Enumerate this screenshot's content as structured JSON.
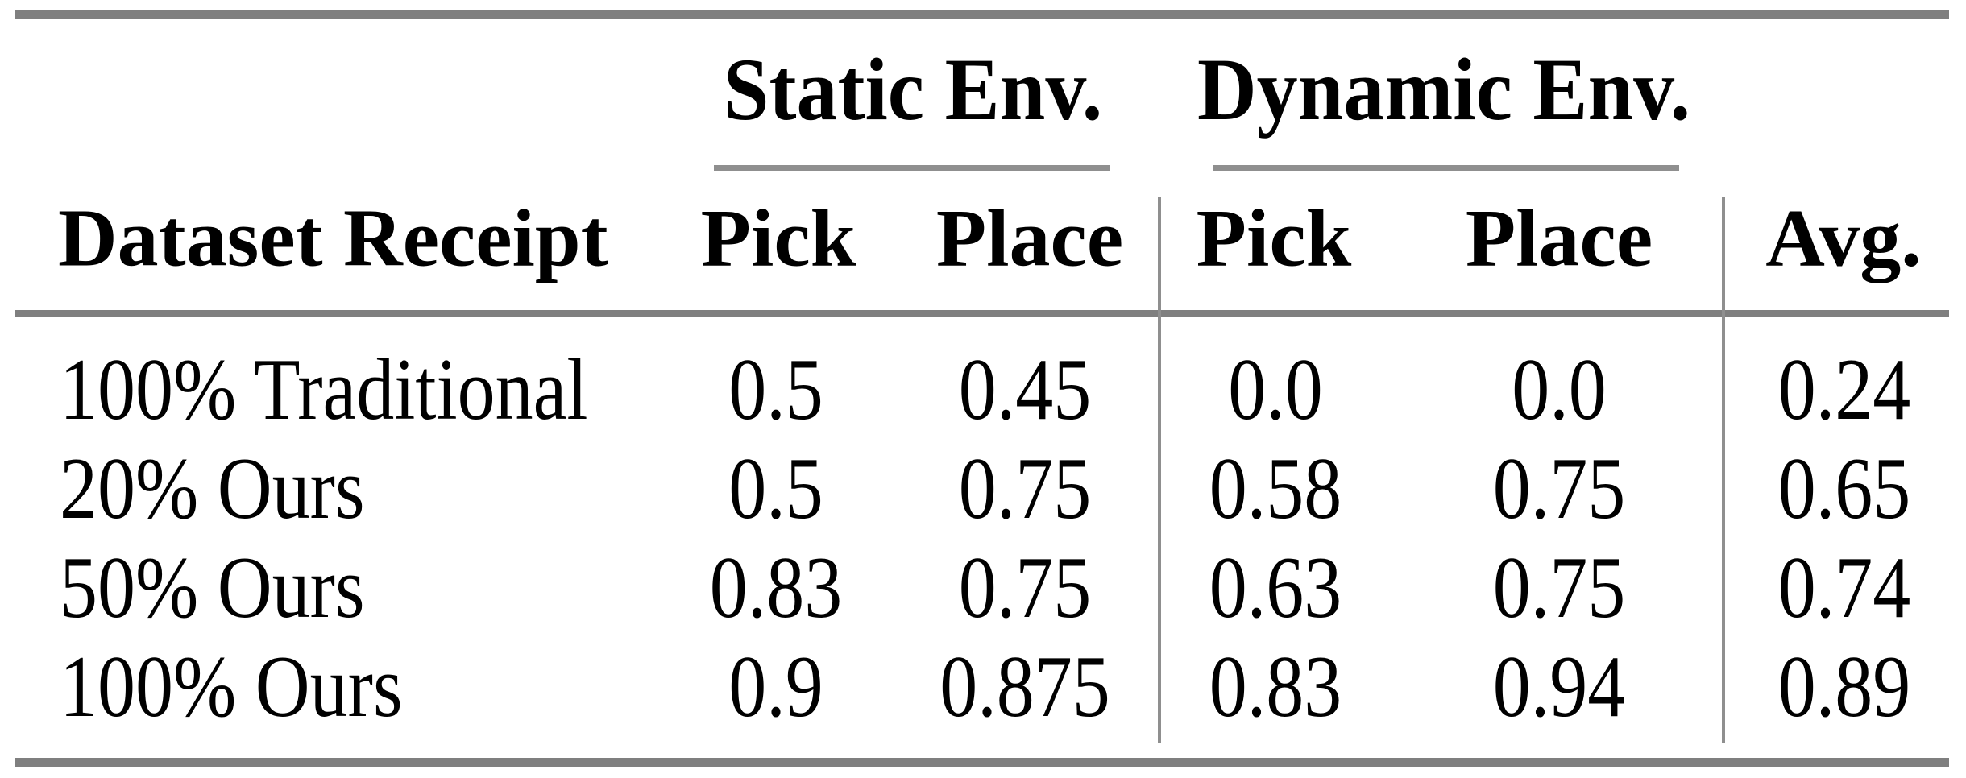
{
  "colors": {
    "background": "#ffffff",
    "rule_gray": "#7f7f7f",
    "line_gray": "#8f8f8f",
    "text": "#000000"
  },
  "table": {
    "group_headers": {
      "static": "Static Env.",
      "dynamic": "Dynamic Env."
    },
    "column_headers": {
      "dataset": "Dataset Receipt",
      "static_pick": "Pick",
      "static_place": "Place",
      "dynamic_pick": "Pick",
      "dynamic_place": "Place",
      "avg": "Avg."
    },
    "rows": [
      {
        "label": "100% Traditional",
        "static_pick": "0.5",
        "static_place": "0.45",
        "dynamic_pick": "0.0",
        "dynamic_place": "0.0",
        "avg": "0.24"
      },
      {
        "label": "20% Ours",
        "static_pick": "0.5",
        "static_place": "0.75",
        "dynamic_pick": "0.58",
        "dynamic_place": "0.75",
        "avg": "0.65"
      },
      {
        "label": "50% Ours",
        "static_pick": "0.83",
        "static_place": "0.75",
        "dynamic_pick": "0.63",
        "dynamic_place": "0.75",
        "avg": "0.74"
      },
      {
        "label": "100% Ours",
        "static_pick": "0.9",
        "static_place": "0.875",
        "dynamic_pick": "0.83",
        "dynamic_place": "0.94",
        "avg": "0.89"
      }
    ]
  },
  "chart_data": {
    "type": "table",
    "column_groups": [
      "Static Env.",
      "Dynamic Env."
    ],
    "columns": [
      "Dataset Receipt",
      "Static Env. Pick",
      "Static Env. Place",
      "Dynamic Env. Pick",
      "Dynamic Env. Place",
      "Avg."
    ],
    "rows": [
      [
        "100% Traditional",
        0.5,
        0.45,
        0.0,
        0.0,
        0.24
      ],
      [
        "20% Ours",
        0.5,
        0.75,
        0.58,
        0.75,
        0.65
      ],
      [
        "50% Ours",
        0.83,
        0.75,
        0.63,
        0.75,
        0.74
      ],
      [
        "100% Ours",
        0.9,
        0.875,
        0.83,
        0.94,
        0.89
      ]
    ]
  }
}
